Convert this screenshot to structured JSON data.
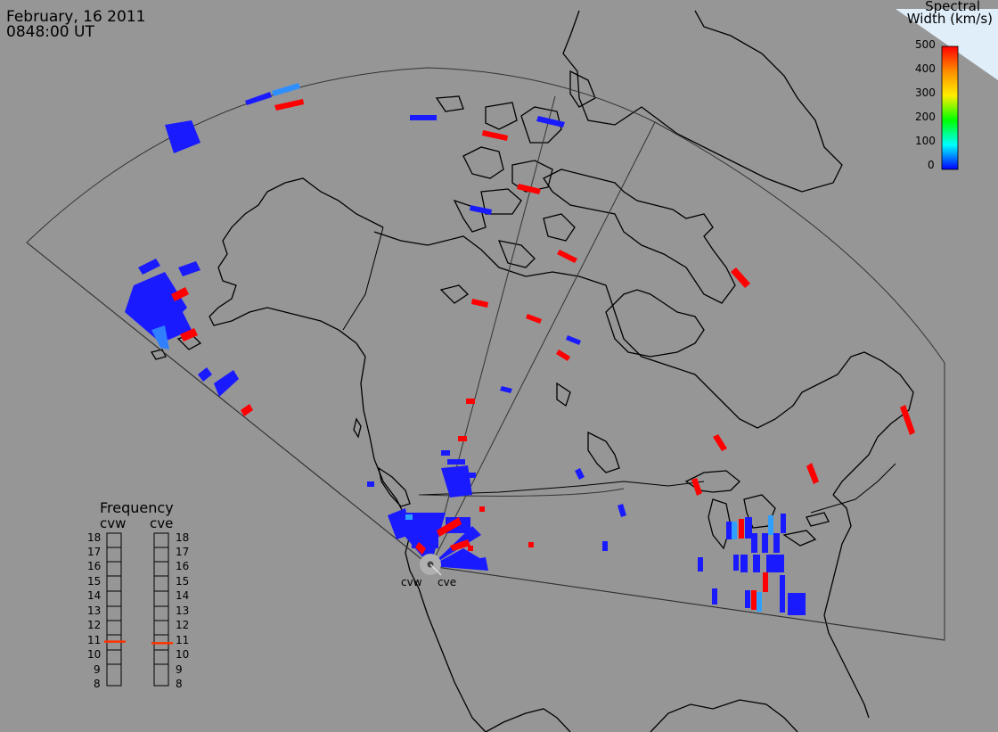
{
  "header": {
    "date": "February, 16 2011",
    "time": "0848:00 UT"
  },
  "colorbar": {
    "title_line1": "Spectral",
    "title_line2": "Width (km/s)",
    "ticks": [
      "500",
      "400",
      "300",
      "200",
      "100",
      "0"
    ],
    "min": 0,
    "max": 500,
    "colors": [
      "#ff0000",
      "#ff8c00",
      "#ffff00",
      "#00ff00",
      "#00ffff",
      "#0000ff"
    ]
  },
  "frequency_panel": {
    "title": "Frequency",
    "radars": [
      {
        "name": "cvw",
        "value_mhz": 10.9
      },
      {
        "name": "cve",
        "value_mhz": 10.8
      }
    ],
    "ticks": [
      "18",
      "17",
      "16",
      "15",
      "14",
      "13",
      "12",
      "11",
      "10",
      "9",
      "8"
    ]
  },
  "sites": [
    {
      "name": "cvw"
    },
    {
      "name": "cve"
    }
  ],
  "colors": {
    "background": "#969696",
    "coastline": "#000000",
    "fov": "#444444",
    "marker": "#ff3300"
  }
}
